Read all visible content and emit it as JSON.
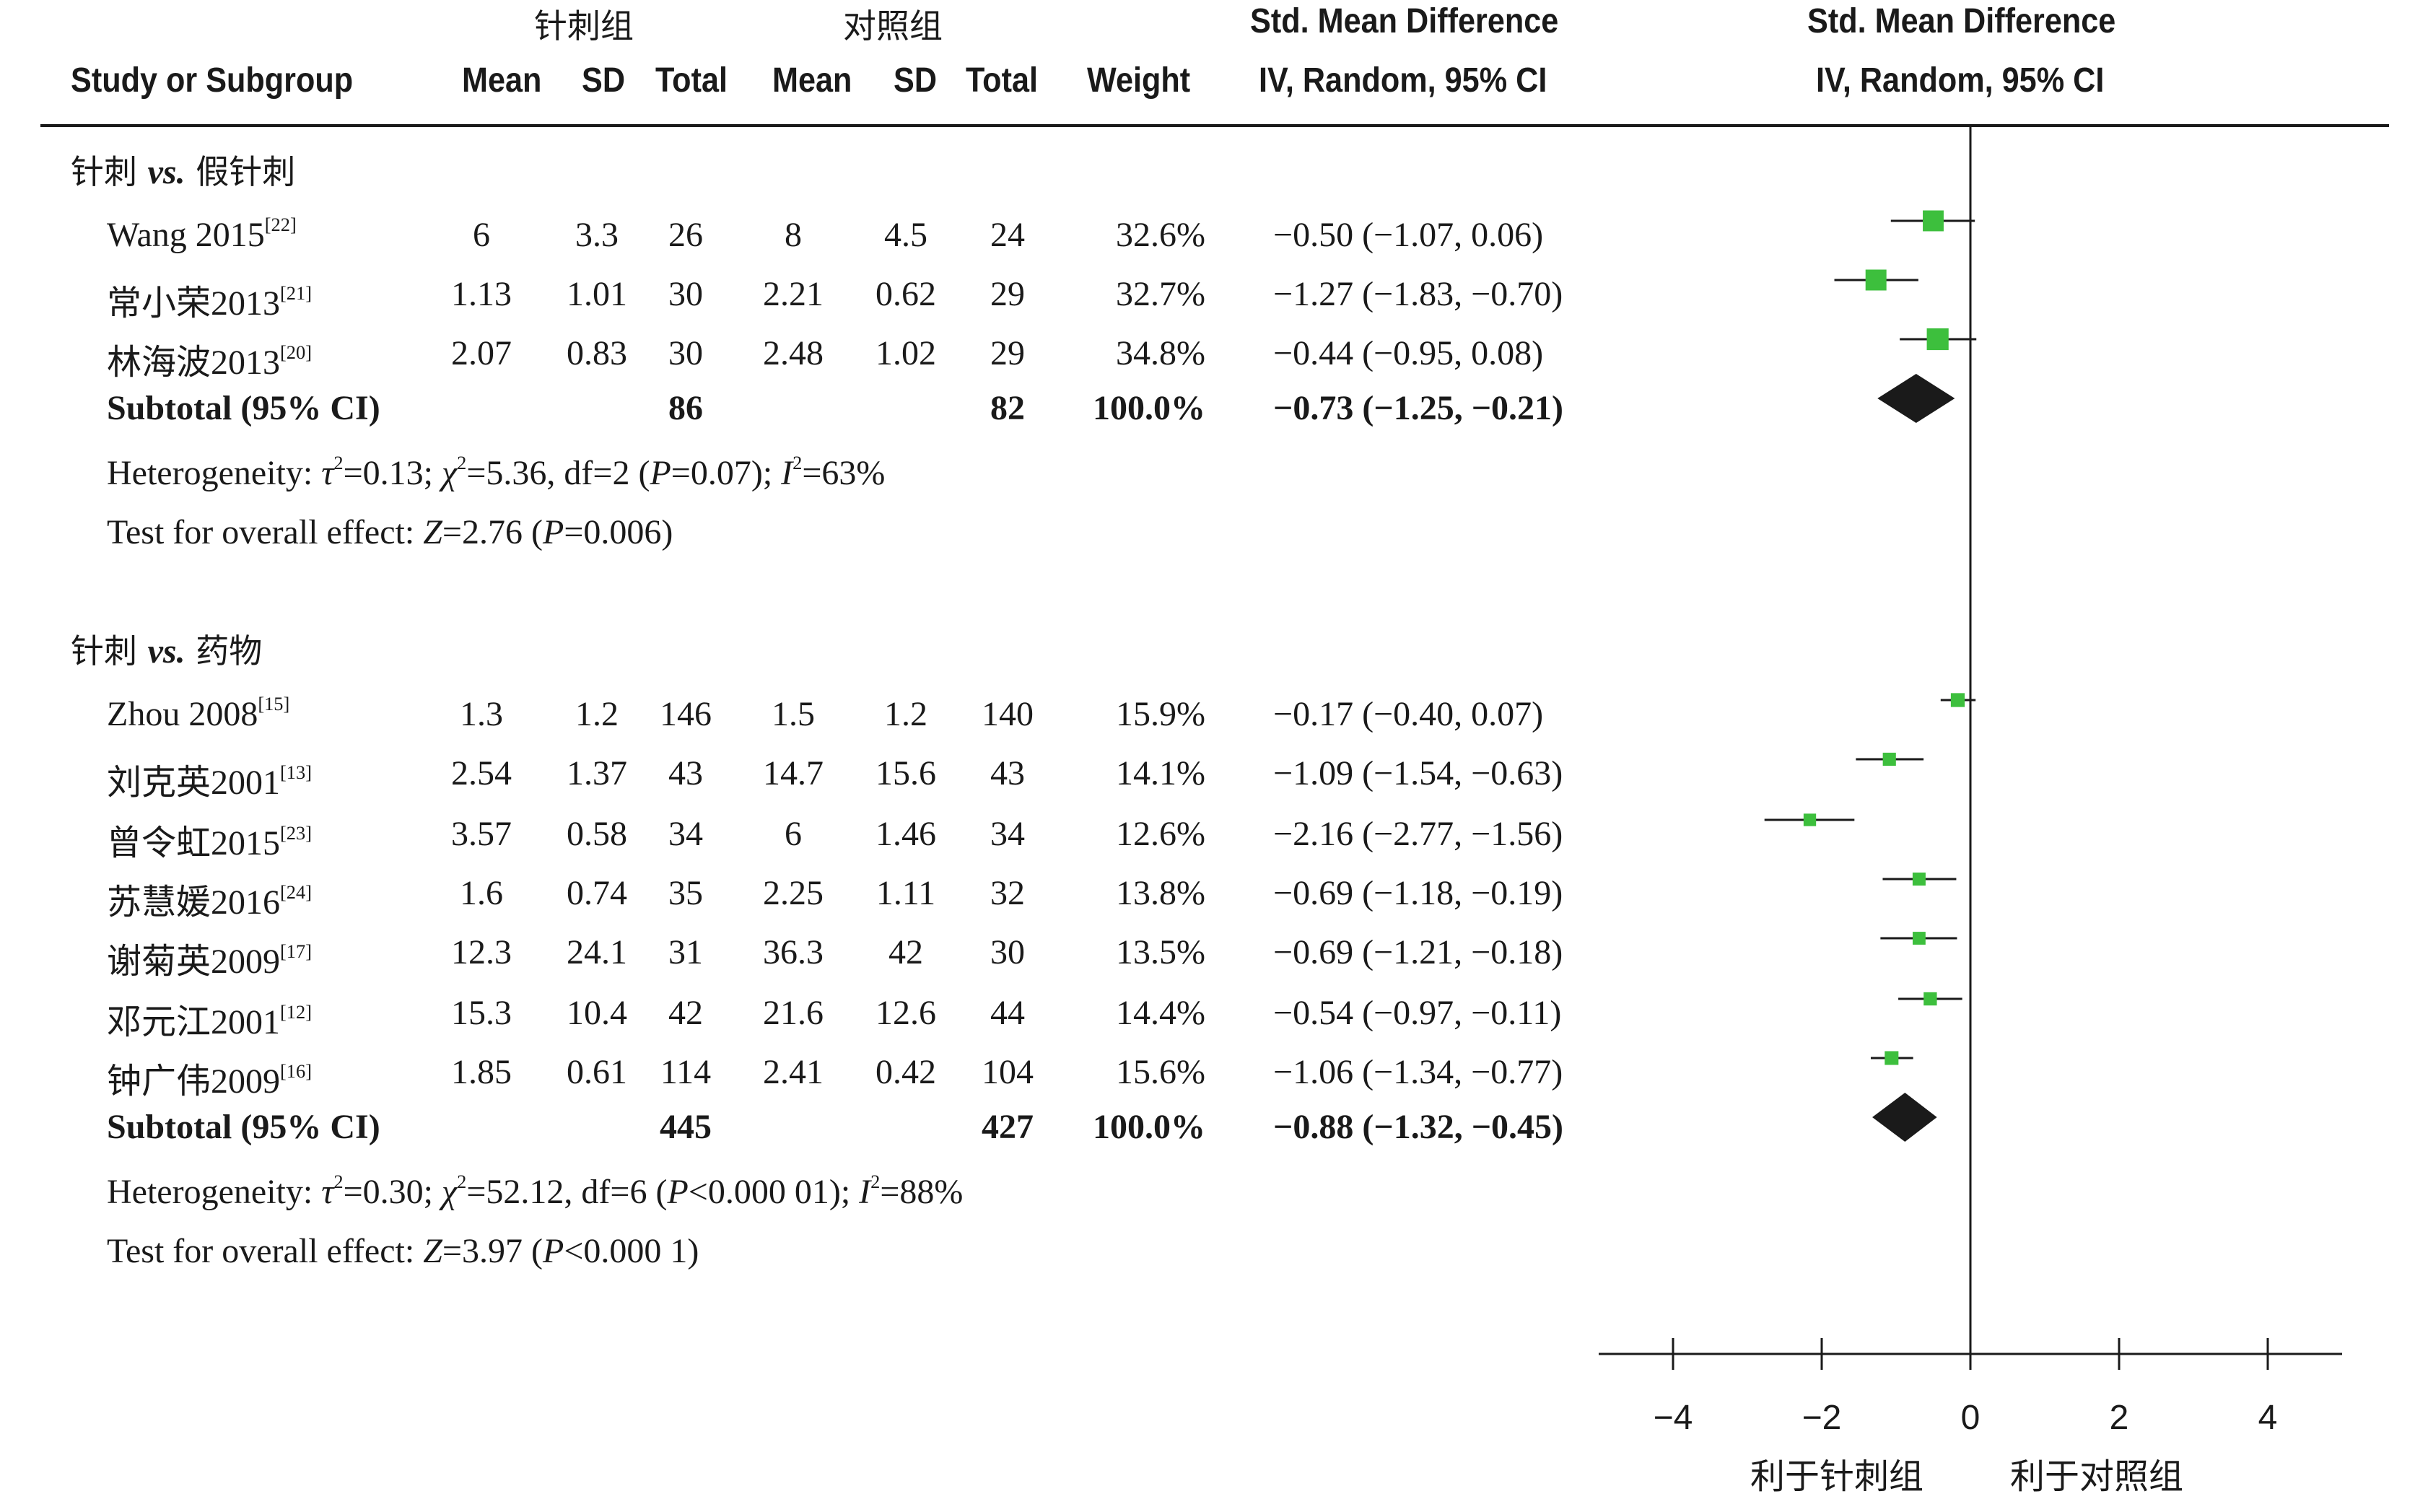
{
  "headers": {
    "group_exp": "针刺组",
    "group_ctl": "对照组",
    "smd_title": "Std. Mean Difference",
    "smd_method": "IV, Random, 95% CI",
    "study": "Study or Subgroup",
    "mean": "Mean",
    "sd": "SD",
    "total": "Total",
    "weight": "Weight"
  },
  "chart_data": {
    "type": "forest",
    "xlim": [
      -5,
      5
    ],
    "xticks": [
      -4,
      -2,
      0,
      2,
      4
    ],
    "xtick_labels": [
      "−4",
      "−2",
      "0",
      "2",
      "4"
    ],
    "favours_left": "利于针刺组",
    "favours_right": "利于对照组",
    "marker_color": "#3dbf3d",
    "diamond_color": "#1a1a1a",
    "subgroups": [
      {
        "title_cn1": "针刺 ",
        "title_vs": "vs.",
        "title_cn2": " 药物",
        "title_cn2_alt": "",
        "studies": [],
        "subtotal": {}
      }
    ]
  }
}
